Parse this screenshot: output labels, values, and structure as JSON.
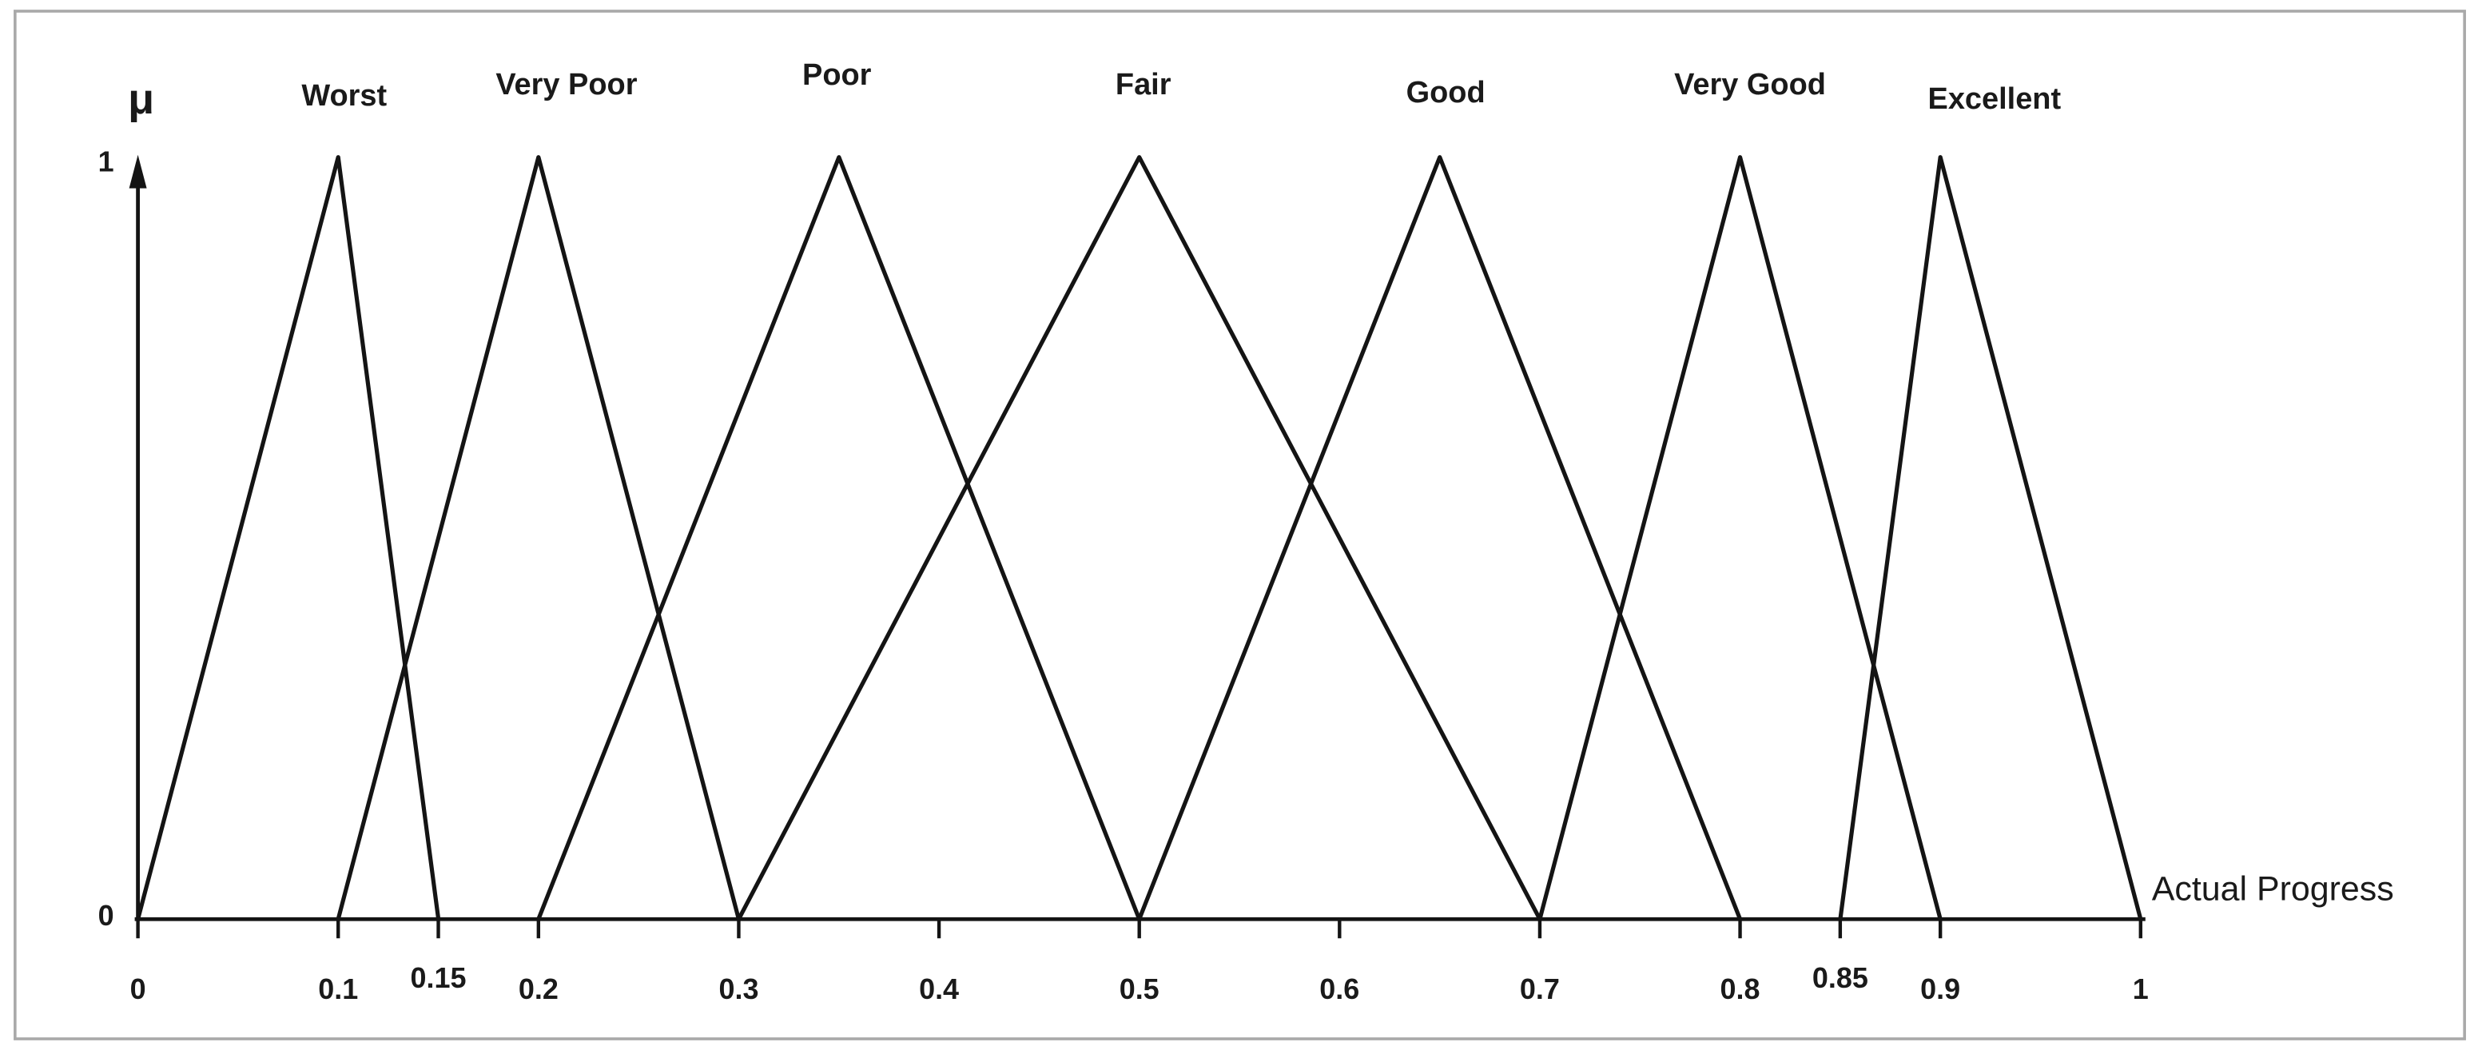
{
  "figure": {
    "background": "#ffffff",
    "border_color": "#a9a9a9",
    "line_color": "#141414",
    "text_color": "#1a1a1a"
  },
  "chart_data": {
    "type": "line",
    "subtype": "fuzzy-triangular-membership-functions",
    "title": "",
    "xlabel": "Actual Progress",
    "ylabel": "μ",
    "xlim": [
      0,
      1
    ],
    "ylim": [
      0,
      1
    ],
    "grid": false,
    "legend_position": "labels-above-peaks",
    "x_ticks": [
      {
        "v": 0,
        "label": "0",
        "raised": false
      },
      {
        "v": 0.1,
        "label": "0.1",
        "raised": false
      },
      {
        "v": 0.15,
        "label": "0.15",
        "raised": true
      },
      {
        "v": 0.2,
        "label": "0.2",
        "raised": false
      },
      {
        "v": 0.3,
        "label": "0.3",
        "raised": false
      },
      {
        "v": 0.4,
        "label": "0.4",
        "raised": false
      },
      {
        "v": 0.5,
        "label": "0.5",
        "raised": false
      },
      {
        "v": 0.6,
        "label": "0.6",
        "raised": false
      },
      {
        "v": 0.7,
        "label": "0.7",
        "raised": false
      },
      {
        "v": 0.8,
        "label": "0.8",
        "raised": false
      },
      {
        "v": 0.85,
        "label": "0.85",
        "raised": true
      },
      {
        "v": 0.9,
        "label": "0.9",
        "raised": false
      },
      {
        "v": 1,
        "label": "1",
        "raised": false
      }
    ],
    "y_ticks": [
      {
        "v": 0,
        "label": "0"
      },
      {
        "v": 1,
        "label": "1"
      }
    ],
    "series": [
      {
        "name": "Worst",
        "points": [
          [
            0,
            0
          ],
          [
            0.1,
            1
          ],
          [
            0.15,
            0
          ]
        ],
        "label_x": 0.103,
        "label_baseline_y": 66
      },
      {
        "name": "Very Poor",
        "points": [
          [
            0.1,
            0
          ],
          [
            0.2,
            1
          ],
          [
            0.3,
            0
          ]
        ],
        "label_x": 0.214,
        "label_baseline_y": 59
      },
      {
        "name": "Poor",
        "points": [
          [
            0.2,
            0
          ],
          [
            0.35,
            1
          ],
          [
            0.5,
            0
          ]
        ],
        "label_x": 0.349,
        "label_baseline_y": 53
      },
      {
        "name": "Fair",
        "points": [
          [
            0.3,
            0
          ],
          [
            0.5,
            1
          ],
          [
            0.7,
            0
          ]
        ],
        "label_x": 0.502,
        "label_baseline_y": 59
      },
      {
        "name": "Good",
        "points": [
          [
            0.5,
            0
          ],
          [
            0.65,
            1
          ],
          [
            0.8,
            0
          ]
        ],
        "label_x": 0.653,
        "label_baseline_y": 64
      },
      {
        "name": "Very Good",
        "points": [
          [
            0.7,
            0
          ],
          [
            0.8,
            1
          ],
          [
            0.9,
            0
          ]
        ],
        "label_x": 0.805,
        "label_baseline_y": 59
      },
      {
        "name": "Excellent",
        "points": [
          [
            0.85,
            0
          ],
          [
            0.9,
            1
          ],
          [
            1,
            0
          ]
        ],
        "label_x": 0.927,
        "label_baseline_y": 68
      }
    ]
  }
}
